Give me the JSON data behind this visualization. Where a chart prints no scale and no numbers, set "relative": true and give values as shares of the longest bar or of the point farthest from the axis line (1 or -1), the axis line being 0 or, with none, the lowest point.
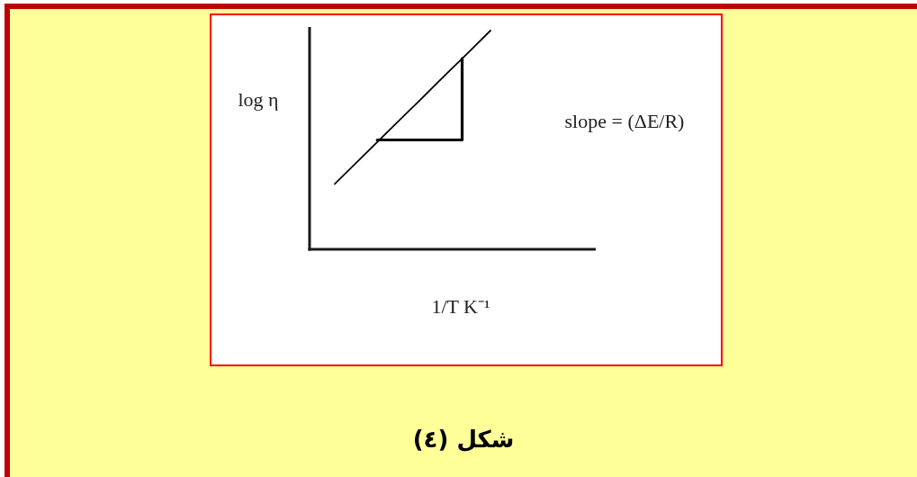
{
  "chart_data": {
    "type": "line",
    "relative": true,
    "categories": [
      null,
      null,
      null,
      null,
      null,
      null,
      null,
      null,
      null,
      null,
      null,
      null
    ],
    "series": [
      {
        "color": "#000000",
        "values": [
          0.299,
          0.363,
          0.426,
          0.49,
          0.554,
          0.618,
          0.681,
          0.745,
          0.809,
          0.872,
          0.936,
          1
        ]
      },
      {
        "type": "step",
        "color": "#000000",
        "values": [
          null,
          null,
          null,
          0.5,
          0.5,
          0.5,
          0.5,
          0.5,
          0.5,
          0.872,
          null,
          null
        ]
      }
    ],
    "xlabel": "1/T K⁻¹",
    "ylabel": "log η",
    "annotations": [
      "slope = (ΔE/R)",
      "شكل (٤)"
    ]
  }
}
